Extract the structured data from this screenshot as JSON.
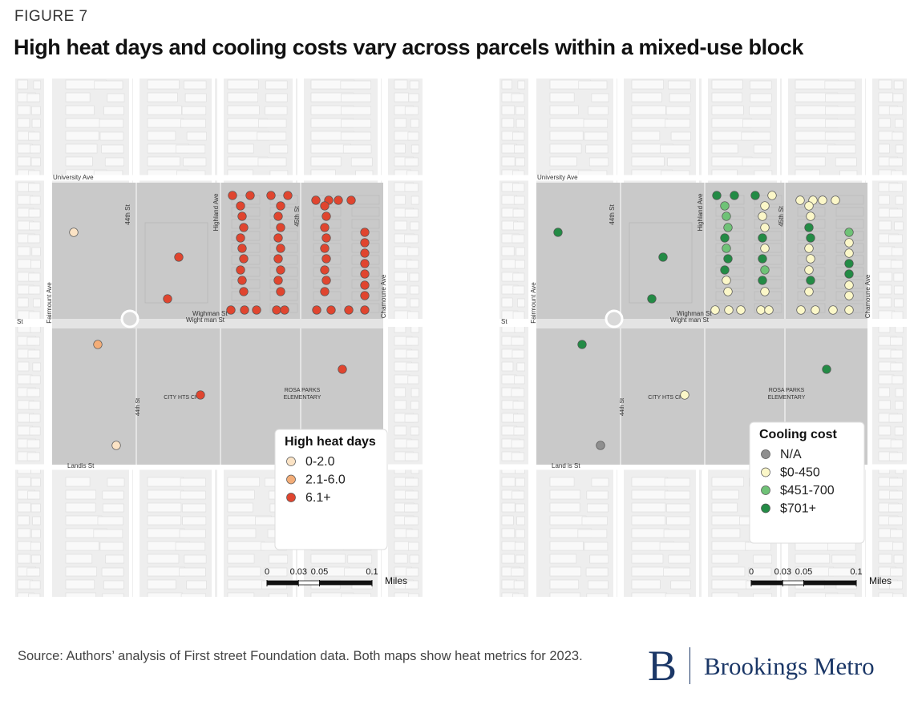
{
  "figure_label": "FIGURE 7",
  "title": "High heat days and cooling costs vary across parcels within a mixed-use block",
  "maps": [
    {
      "legend": {
        "title": "High heat days",
        "items": [
          {
            "label": "0-2.0",
            "color": "#fbe3c5"
          },
          {
            "label": "2.1-6.0",
            "color": "#f3ad78"
          },
          {
            "label": "6.1+",
            "color": "#e0452f"
          }
        ]
      },
      "streets": [
        "University Ave",
        "44th St",
        "Highland Ave",
        "45th St",
        "Fairmount Ave",
        "Chamoune Ave",
        "Wighman St",
        "Wight man St",
        "St",
        "44th St",
        "CITY HTS CP",
        "ROSA PARKS",
        "ELEMENTARY",
        "Landis St"
      ],
      "scale": {
        "ticks": [
          0,
          0.03,
          0.05,
          0.1
        ],
        "unit": "Miles"
      }
    },
    {
      "legend": {
        "title": "Cooling cost",
        "items": [
          {
            "label": "N/A",
            "color": "#8f8f8f"
          },
          {
            "label": "$0-450",
            "color": "#fbf7c8"
          },
          {
            "label": "$451-700",
            "color": "#6fc277"
          },
          {
            "label": "$701+",
            "color": "#238b45"
          }
        ]
      },
      "streets": [
        "University Ave",
        "44th St",
        "Highland Ave",
        "45th St",
        "Fairmount Ave",
        "Chamoune Ave",
        "Wighman St",
        "Wight man St",
        "St",
        "44th St",
        "CITY HTS CP",
        "ROSA PARKS",
        "ELEMENTARY",
        "Land is St"
      ],
      "scale": {
        "ticks": [
          0,
          0.03,
          0.05,
          0.1
        ],
        "unit": "Miles"
      }
    }
  ],
  "source": "Source: Authors’ analysis of First street Foundation data. Both maps show heat metrics for 2023.",
  "logo": {
    "mark": "B",
    "name": "Brookings Metro"
  }
}
